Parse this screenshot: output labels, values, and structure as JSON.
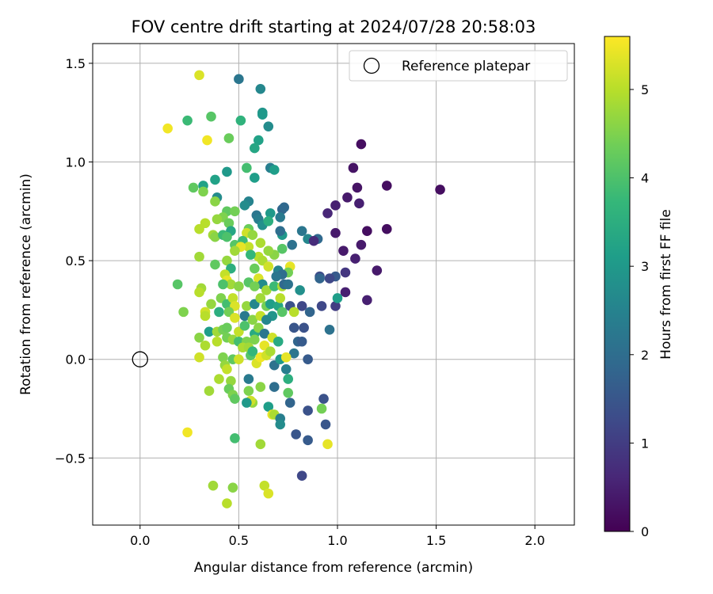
{
  "chart_data": {
    "type": "scatter",
    "title": "FOV centre drift starting at 2024/07/28 20:58:03",
    "xlabel": "Angular distance from reference (arcmin)",
    "ylabel": "Rotation from reference (arcmin)",
    "xlim": [
      -0.24,
      2.2
    ],
    "ylim": [
      -0.84,
      1.6
    ],
    "x_ticks": [
      0.0,
      0.5,
      1.0,
      1.5,
      2.0
    ],
    "x_tick_labels": [
      "0.0",
      "0.5",
      "1.0",
      "1.5",
      "2.0"
    ],
    "y_ticks": [
      -0.5,
      0.0,
      0.5,
      1.0,
      1.5
    ],
    "y_tick_labels": [
      "−0.5",
      "0.0",
      "0.5",
      "1.0",
      "1.5"
    ],
    "grid": true,
    "legend": {
      "placement": "top-right",
      "entries": [
        "Reference platepar"
      ]
    },
    "reference_point": {
      "label": "Reference platepar",
      "x": 0.0,
      "y": 0.0,
      "marker": "open-circle"
    },
    "colorbar": {
      "label": "Hours from first FF file",
      "colormap": "viridis",
      "range": [
        0,
        5.6
      ],
      "ticks": [
        0,
        1,
        2,
        3,
        4,
        5
      ],
      "tick_labels": [
        "0",
        "1",
        "2",
        "3",
        "4",
        "5"
      ]
    },
    "colormap_stops": [
      "#440154",
      "#482878",
      "#3e4a89",
      "#31688e",
      "#26828e",
      "#1f9e89",
      "#35b779",
      "#6ece58",
      "#b5de2b",
      "#fde725"
    ],
    "points": [
      [
        0.5,
        1.42,
        2.2
      ],
      [
        0.3,
        1.44,
        5.3
      ],
      [
        0.61,
        1.37,
        2.6
      ],
      [
        0.14,
        1.17,
        5.5
      ],
      [
        0.24,
        1.21,
        3.8
      ],
      [
        0.36,
        1.23,
        4.1
      ],
      [
        0.51,
        1.21,
        3.6
      ],
      [
        0.62,
        1.25,
        2.9
      ],
      [
        0.62,
        1.24,
        3.0
      ],
      [
        0.65,
        1.18,
        2.7
      ],
      [
        0.34,
        1.11,
        5.5
      ],
      [
        0.45,
        1.12,
        4.3
      ],
      [
        0.6,
        1.11,
        3.2
      ],
      [
        0.58,
        1.07,
        3.3
      ],
      [
        1.12,
        1.09,
        0.2
      ],
      [
        0.54,
        0.97,
        3.9
      ],
      [
        0.66,
        0.97,
        2.4
      ],
      [
        0.68,
        0.96,
        3.1
      ],
      [
        0.44,
        0.95,
        3.0
      ],
      [
        1.08,
        0.97,
        0.3
      ],
      [
        0.38,
        0.91,
        3.2
      ],
      [
        0.58,
        0.92,
        3.1
      ],
      [
        0.32,
        0.88,
        3.2
      ],
      [
        0.27,
        0.87,
        4.2
      ],
      [
        0.32,
        0.85,
        4.5
      ],
      [
        1.1,
        0.87,
        0.3
      ],
      [
        1.25,
        0.88,
        0.2
      ],
      [
        1.52,
        0.86,
        0.2
      ],
      [
        1.05,
        0.82,
        0.4
      ],
      [
        1.11,
        0.79,
        0.5
      ],
      [
        0.39,
        0.82,
        2.7
      ],
      [
        0.38,
        0.8,
        4.6
      ],
      [
        0.55,
        0.8,
        2.5
      ],
      [
        0.53,
        0.78,
        2.7
      ],
      [
        0.72,
        0.76,
        1.8
      ],
      [
        0.73,
        0.77,
        1.9
      ],
      [
        0.59,
        0.73,
        2.2
      ],
      [
        0.6,
        0.71,
        2.4
      ],
      [
        0.66,
        0.74,
        3.0
      ],
      [
        0.71,
        0.72,
        2.3
      ],
      [
        0.95,
        0.74,
        0.6
      ],
      [
        0.99,
        0.78,
        0.5
      ],
      [
        0.44,
        0.75,
        4.2
      ],
      [
        0.48,
        0.75,
        4.4
      ],
      [
        0.42,
        0.72,
        4.5
      ],
      [
        0.39,
        0.71,
        4.7
      ],
      [
        0.45,
        0.69,
        4.3
      ],
      [
        0.33,
        0.69,
        5.0
      ],
      [
        0.3,
        0.66,
        5.0
      ],
      [
        0.37,
        0.63,
        4.8
      ],
      [
        0.38,
        0.62,
        4.6
      ],
      [
        0.46,
        0.65,
        3.3
      ],
      [
        0.42,
        0.63,
        3.8
      ],
      [
        0.44,
        0.62,
        4.0
      ],
      [
        0.55,
        0.66,
        4.3
      ],
      [
        0.54,
        0.64,
        5.2
      ],
      [
        0.62,
        0.68,
        2.8
      ],
      [
        0.65,
        0.7,
        3.5
      ],
      [
        0.57,
        0.63,
        4.7
      ],
      [
        0.52,
        0.6,
        3.8
      ],
      [
        0.48,
        0.58,
        4.1
      ],
      [
        0.61,
        0.59,
        4.9
      ],
      [
        0.72,
        0.63,
        3.0
      ],
      [
        0.71,
        0.65,
        2.0
      ],
      [
        0.82,
        0.65,
        2.2
      ],
      [
        0.85,
        0.61,
        2.6
      ],
      [
        0.9,
        0.61,
        1.9
      ],
      [
        0.88,
        0.6,
        0.7
      ],
      [
        0.99,
        0.64,
        0.4
      ],
      [
        1.15,
        0.65,
        0.2
      ],
      [
        1.25,
        0.66,
        0.2
      ],
      [
        1.12,
        0.58,
        0.4
      ],
      [
        1.09,
        0.51,
        0.5
      ],
      [
        1.03,
        0.55,
        0.4
      ],
      [
        0.77,
        0.58,
        2.1
      ],
      [
        0.55,
        0.57,
        5.1
      ],
      [
        0.51,
        0.57,
        5.4
      ],
      [
        0.68,
        0.53,
        4.6
      ],
      [
        0.72,
        0.56,
        4.1
      ],
      [
        0.65,
        0.55,
        4.7
      ],
      [
        0.6,
        0.52,
        5.0
      ],
      [
        0.62,
        0.5,
        4.9
      ],
      [
        0.48,
        0.55,
        4.8
      ],
      [
        0.56,
        0.53,
        3.7
      ],
      [
        0.3,
        0.52,
        4.8
      ],
      [
        0.38,
        0.48,
        4.2
      ],
      [
        0.44,
        0.5,
        4.7
      ],
      [
        0.46,
        0.46,
        3.5
      ],
      [
        0.58,
        0.46,
        4.3
      ],
      [
        0.65,
        0.47,
        5.2
      ],
      [
        0.7,
        0.45,
        2.5
      ],
      [
        0.76,
        0.47,
        5.4
      ],
      [
        0.75,
        0.44,
        4.4
      ],
      [
        0.72,
        0.43,
        2.0
      ],
      [
        0.69,
        0.42,
        2.2
      ],
      [
        0.91,
        0.42,
        1.3
      ],
      [
        0.99,
        0.42,
        1.6
      ],
      [
        0.96,
        0.41,
        1.2
      ],
      [
        1.04,
        0.44,
        0.9
      ],
      [
        1.2,
        0.45,
        0.4
      ],
      [
        0.91,
        0.41,
        1.8
      ],
      [
        0.19,
        0.38,
        4.1
      ],
      [
        0.31,
        0.36,
        4.8
      ],
      [
        0.3,
        0.34,
        5.0
      ],
      [
        0.43,
        0.43,
        5.1
      ],
      [
        0.44,
        0.4,
        5.4
      ],
      [
        0.46,
        0.38,
        4.8
      ],
      [
        0.42,
        0.38,
        4.0
      ],
      [
        0.5,
        0.37,
        4.6
      ],
      [
        0.55,
        0.39,
        4.1
      ],
      [
        0.6,
        0.41,
        5.3
      ],
      [
        0.62,
        0.38,
        2.7
      ],
      [
        0.58,
        0.37,
        4.4
      ],
      [
        0.64,
        0.35,
        4.8
      ],
      [
        0.68,
        0.37,
        3.8
      ],
      [
        0.72,
        0.37,
        4.9
      ],
      [
        0.73,
        0.38,
        1.9
      ],
      [
        0.75,
        0.38,
        2.1
      ],
      [
        0.81,
        0.35,
        2.8
      ],
      [
        1.04,
        0.34,
        0.5
      ],
      [
        0.92,
        0.27,
        1.2
      ],
      [
        0.99,
        0.27,
        1.0
      ],
      [
        1.0,
        0.31,
        3.1
      ],
      [
        1.15,
        0.3,
        0.5
      ],
      [
        0.41,
        0.31,
        4.5
      ],
      [
        0.36,
        0.28,
        4.7
      ],
      [
        0.44,
        0.28,
        3.9
      ],
      [
        0.47,
        0.31,
        5.1
      ],
      [
        0.48,
        0.27,
        5.3
      ],
      [
        0.54,
        0.27,
        4.7
      ],
      [
        0.58,
        0.28,
        2.6
      ],
      [
        0.61,
        0.31,
        4.8
      ],
      [
        0.64,
        0.27,
        4.4
      ],
      [
        0.66,
        0.28,
        3.1
      ],
      [
        0.7,
        0.27,
        3.3
      ],
      [
        0.71,
        0.31,
        5.0
      ],
      [
        0.76,
        0.27,
        1.4
      ],
      [
        0.82,
        0.27,
        1.2
      ],
      [
        0.86,
        0.24,
        1.8
      ],
      [
        0.78,
        0.24,
        5.0
      ],
      [
        0.72,
        0.24,
        4.1
      ],
      [
        0.67,
        0.22,
        2.9
      ],
      [
        0.22,
        0.24,
        4.5
      ],
      [
        0.33,
        0.24,
        5.2
      ],
      [
        0.33,
        0.22,
        5.0
      ],
      [
        0.4,
        0.24,
        3.5
      ],
      [
        0.45,
        0.24,
        4.4
      ],
      [
        0.48,
        0.21,
        5.3
      ],
      [
        0.53,
        0.22,
        2.3
      ],
      [
        0.57,
        0.2,
        4.6
      ],
      [
        0.61,
        0.22,
        5.1
      ],
      [
        0.64,
        0.2,
        2.6
      ],
      [
        0.78,
        0.16,
        1.5
      ],
      [
        0.83,
        0.16,
        1.4
      ],
      [
        0.96,
        0.15,
        2.1
      ],
      [
        0.35,
        0.14,
        3.1
      ],
      [
        0.39,
        0.14,
        4.8
      ],
      [
        0.42,
        0.15,
        4.4
      ],
      [
        0.44,
        0.16,
        4.3
      ],
      [
        0.5,
        0.14,
        5.1
      ],
      [
        0.53,
        0.17,
        4.0
      ],
      [
        0.58,
        0.13,
        3.4
      ],
      [
        0.6,
        0.16,
        4.6
      ],
      [
        0.63,
        0.13,
        2.2
      ],
      [
        0.3,
        0.11,
        4.6
      ],
      [
        0.33,
        0.07,
        4.9
      ],
      [
        0.39,
        0.09,
        5.0
      ],
      [
        0.44,
        0.11,
        4.4
      ],
      [
        0.47,
        0.1,
        4.7
      ],
      [
        0.5,
        0.09,
        3.9
      ],
      [
        0.54,
        0.09,
        4.5
      ],
      [
        0.58,
        0.1,
        4.5
      ],
      [
        0.63,
        0.07,
        5.4
      ],
      [
        0.67,
        0.11,
        5.2
      ],
      [
        0.7,
        0.09,
        3.4
      ],
      [
        0.8,
        0.09,
        1.8
      ],
      [
        0.82,
        0.09,
        1.6
      ],
      [
        0.78,
        0.03,
        2.2
      ],
      [
        0.85,
        0.0,
        1.6
      ],
      [
        0.3,
        0.01,
        5.2
      ],
      [
        0.42,
        0.01,
        4.5
      ],
      [
        0.43,
        -0.03,
        4.7
      ],
      [
        0.47,
        0.0,
        4.2
      ],
      [
        0.5,
        0.0,
        5.2
      ],
      [
        0.52,
        0.06,
        4.9
      ],
      [
        0.55,
        0.06,
        4.8
      ],
      [
        0.56,
        0.02,
        4.1
      ],
      [
        0.59,
        -0.02,
        5.3
      ],
      [
        0.61,
        0.01,
        5.5
      ],
      [
        0.64,
        0.02,
        5.2
      ],
      [
        0.66,
        0.04,
        4.9
      ],
      [
        0.68,
        -0.03,
        2.1
      ],
      [
        0.71,
        0.0,
        3.0
      ],
      [
        0.74,
        0.01,
        5.4
      ],
      [
        0.74,
        -0.05,
        2.4
      ],
      [
        0.57,
        0.04,
        3.7
      ],
      [
        0.44,
        -0.05,
        5.1
      ],
      [
        0.46,
        -0.11,
        4.7
      ],
      [
        0.4,
        -0.1,
        4.9
      ],
      [
        0.45,
        -0.15,
        4.3
      ],
      [
        0.47,
        -0.18,
        4.5
      ],
      [
        0.48,
        -0.2,
        4.2
      ],
      [
        0.35,
        -0.16,
        4.8
      ],
      [
        0.55,
        -0.1,
        2.3
      ],
      [
        0.61,
        -0.14,
        4.6
      ],
      [
        0.55,
        -0.16,
        4.5
      ],
      [
        0.68,
        -0.14,
        2.0
      ],
      [
        0.75,
        -0.1,
        3.5
      ],
      [
        0.75,
        -0.17,
        4.2
      ],
      [
        0.76,
        -0.22,
        1.8
      ],
      [
        0.57,
        -0.22,
        4.7
      ],
      [
        0.56,
        -0.21,
        5.2
      ],
      [
        0.54,
        -0.22,
        3.0
      ],
      [
        0.65,
        -0.24,
        3.1
      ],
      [
        0.67,
        -0.28,
        5.4
      ],
      [
        0.68,
        -0.28,
        4.9
      ],
      [
        0.71,
        -0.3,
        2.4
      ],
      [
        0.71,
        -0.33,
        2.7
      ],
      [
        0.85,
        -0.26,
        1.4
      ],
      [
        0.93,
        -0.2,
        1.4
      ],
      [
        0.92,
        -0.25,
        4.4
      ],
      [
        0.94,
        -0.33,
        1.5
      ],
      [
        0.24,
        -0.37,
        5.5
      ],
      [
        0.48,
        -0.4,
        3.9
      ],
      [
        0.61,
        -0.43,
        4.8
      ],
      [
        0.79,
        -0.38,
        1.5
      ],
      [
        0.85,
        -0.41,
        1.6
      ],
      [
        0.95,
        -0.43,
        5.4
      ],
      [
        0.82,
        -0.59,
        1.2
      ],
      [
        0.37,
        -0.64,
        4.8
      ],
      [
        0.47,
        -0.65,
        4.6
      ],
      [
        0.63,
        -0.64,
        5.1
      ],
      [
        0.65,
        -0.68,
        5.3
      ],
      [
        0.44,
        -0.73,
        5.0
      ]
    ]
  }
}
